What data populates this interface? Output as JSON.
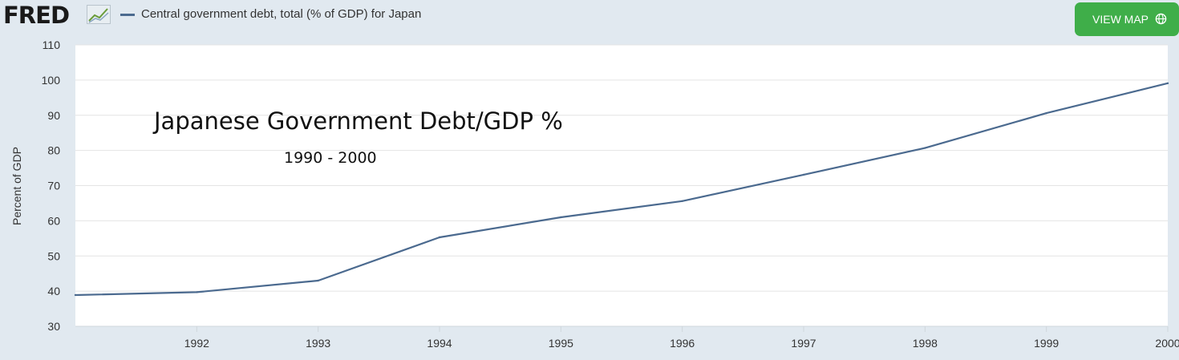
{
  "header": {
    "logo_text": "FRED",
    "logo_icon": "line-chart-icon",
    "legend_label": "Central government debt, total (% of GDP) for Japan",
    "view_map_label": "VIEW MAP",
    "view_map_icon": "globe-icon"
  },
  "overlay": {
    "title": "Japanese Government Debt/GDP %",
    "subtitle": "1990 - 2000"
  },
  "colors": {
    "page_background": "#e1e9f0",
    "plot_background": "#ffffff",
    "series_line": "#4b6a8f",
    "button": "#3fae49"
  },
  "chart_data": {
    "type": "line",
    "title": "",
    "xlabel": "",
    "ylabel": "Percent of GDP",
    "ylim": [
      30,
      110
    ],
    "yticks": [
      30,
      40,
      50,
      60,
      70,
      80,
      90,
      100,
      110
    ],
    "xlim": [
      1991,
      2000
    ],
    "xticks": [
      1992,
      1993,
      1994,
      1995,
      1996,
      1997,
      1998,
      1999,
      2000
    ],
    "grid": true,
    "series": [
      {
        "name": "Central government debt, total (% of GDP) for Japan",
        "color": "#4b6a8f",
        "x": [
          1991,
          1992,
          1993,
          1994,
          1995,
          1996,
          1997,
          1998,
          1999,
          2000
        ],
        "y": [
          38.9,
          39.7,
          43.0,
          55.3,
          61.0,
          65.6,
          73.1,
          80.7,
          90.6,
          99.1
        ]
      }
    ]
  }
}
